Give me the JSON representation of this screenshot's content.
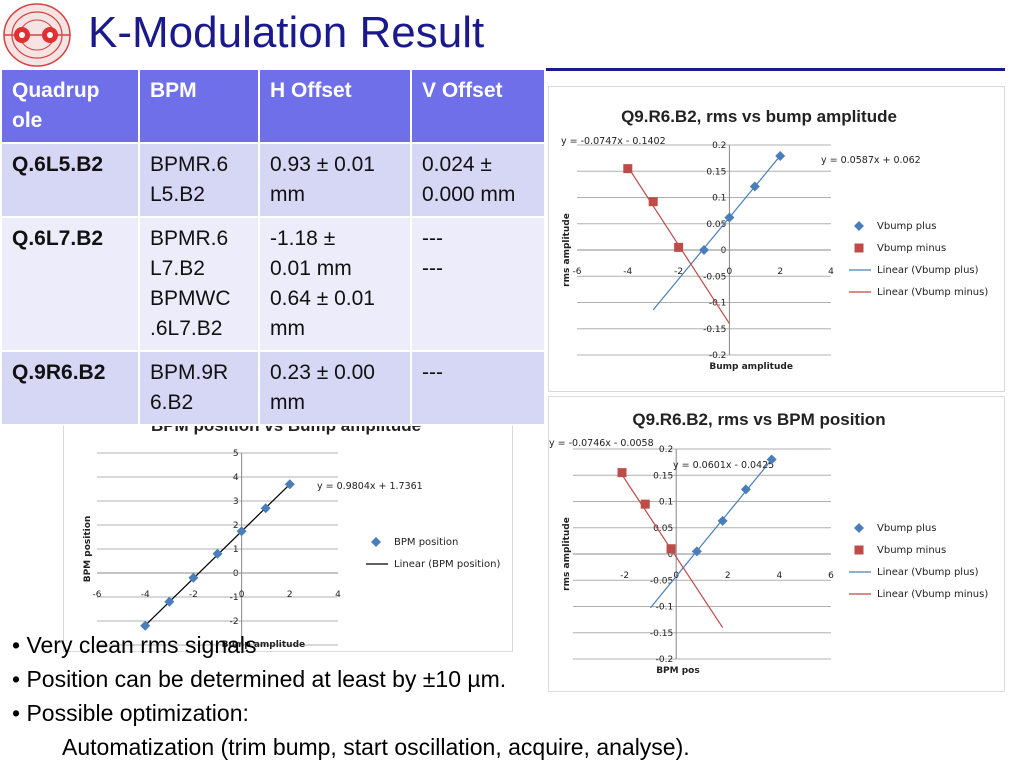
{
  "title": "K-Modulation Result",
  "table": {
    "headers": [
      "Quadrupole",
      "BPM",
      "H Offset",
      "V Offset"
    ],
    "header_display": [
      "Quadrup\nole",
      "BPM",
      "H Offset",
      "V Offset"
    ],
    "rows": [
      {
        "quad": "Q.6L5.B2",
        "bpm": [
          "BPMR.6",
          "L5.B2"
        ],
        "h": [
          "0.93 ± 0.01",
          "mm"
        ],
        "v": [
          "0.024 ±",
          "0.000 mm"
        ]
      },
      {
        "quad": "Q.6L7.B2",
        "bpm": [
          "BPMR.6",
          "L7.B2",
          "BPMWC",
          ".6L7.B2"
        ],
        "h": [
          "-1.18 ±",
          "0.01 mm",
          "0.64 ± 0.01",
          "mm"
        ],
        "v": [
          "---",
          "---"
        ]
      },
      {
        "quad": "Q.9R6.B2",
        "bpm": [
          "BPM.9R",
          "6.B2"
        ],
        "h": [
          "0.23 ± 0.00",
          "mm"
        ],
        "v": [
          "---"
        ]
      }
    ]
  },
  "bullets": [
    "• Very clean rms signals",
    "• Position can be determined at least by ±10 µm.",
    "• Possible optimization:"
  ],
  "sub_bullet": "Automatization (trim bump, start oscillation, acquire, analyse).",
  "chart_data": [
    {
      "type": "scatter",
      "title": "Q9.R6.B2, rms vs bump amplitude",
      "xlabel": "Bump amplitude",
      "ylabel": "rms amplitude",
      "xlim": [
        -6,
        4
      ],
      "ylim": [
        -0.2,
        0.2
      ],
      "xticks": [
        "-6",
        "-4",
        "-2",
        "0",
        "2",
        "4"
      ],
      "yticks": [
        "0.2",
        "0.15",
        "0.1",
        "0.05",
        "0",
        "-0.05",
        "-0.1",
        "-0.15",
        "-0.2"
      ],
      "series": [
        {
          "name": "Vbump plus",
          "color": "#4a7ebb",
          "marker": "diamond",
          "x": [
            -1,
            0,
            1,
            2
          ],
          "y": [
            0.0,
            0.062,
            0.121,
            0.179
          ]
        },
        {
          "name": "Vbump minus",
          "color": "#be4b48",
          "marker": "square",
          "x": [
            -4,
            -3,
            -2
          ],
          "y": [
            0.155,
            0.092,
            0.005
          ]
        }
      ],
      "trendlines": [
        {
          "name": "Linear (Vbump plus)",
          "color": "#4a7ebb",
          "equation": "y = 0.0587x + 0.062",
          "slope": 0.0587,
          "intercept": 0.062,
          "x": [
            -3,
            2
          ]
        },
        {
          "name": "Linear (Vbump minus)",
          "color": "#be4b48",
          "equation": "y = -0.0747x - 0.1402",
          "slope": -0.0747,
          "intercept": -0.1402,
          "x": [
            -4,
            0
          ]
        }
      ]
    },
    {
      "type": "scatter",
      "title": "BPM position vs Bump amplitude",
      "xlabel": "Bump amplitude",
      "ylabel": "BPM position",
      "xlim": [
        -6,
        4
      ],
      "ylim": [
        -3,
        5
      ],
      "xticks": [
        "-6",
        "-4",
        "-2",
        "0",
        "2",
        "4"
      ],
      "yticks": [
        "5",
        "4",
        "3",
        "2",
        "1",
        "0",
        "-1",
        "-2",
        "-3"
      ],
      "series": [
        {
          "name": "BPM position",
          "color": "#4a7ebb",
          "marker": "diamond",
          "x": [
            -4,
            -3,
            -2,
            -1,
            0,
            1,
            2
          ],
          "y": [
            -2.2,
            -1.2,
            -0.2,
            0.8,
            1.74,
            2.7,
            3.7
          ]
        }
      ],
      "trendlines": [
        {
          "name": "Linear (BPM position)",
          "color": "#000000",
          "equation": "y = 0.9804x + 1.7361",
          "slope": 0.9804,
          "intercept": 1.7361,
          "x": [
            -4,
            2
          ]
        }
      ]
    },
    {
      "type": "scatter",
      "title": "Q9.R6.B2, rms vs BPM position",
      "xlabel": "BPM pos",
      "ylabel": "rms amplitude",
      "xlim": [
        -4,
        6
      ],
      "ylim": [
        -0.2,
        0.2
      ],
      "xticks": [
        "-2",
        "0",
        "2",
        "4",
        "6"
      ],
      "yticks": [
        "0.2",
        "0.15",
        "0.1",
        "0.05",
        "0",
        "-0.05",
        "-0.1",
        "-0.15",
        "-0.2"
      ],
      "series": [
        {
          "name": "Vbump plus",
          "color": "#4a7ebb",
          "marker": "diamond",
          "x": [
            0.8,
            1.8,
            2.7,
            3.7
          ],
          "y": [
            0.005,
            0.063,
            0.123,
            0.18
          ]
        },
        {
          "name": "Vbump minus",
          "color": "#be4b48",
          "marker": "square",
          "x": [
            -2.1,
            -1.2,
            -0.2
          ],
          "y": [
            0.155,
            0.095,
            0.01
          ]
        }
      ],
      "trendlines": [
        {
          "name": "Linear (Vbump plus)",
          "color": "#4a7ebb",
          "equation": "y = 0.0601x - 0.0425",
          "slope": 0.0601,
          "intercept": -0.0425,
          "x": [
            -1,
            3.7
          ]
        },
        {
          "name": "Linear (Vbump minus)",
          "color": "#be4b48",
          "equation": "y = -0.0746x - 0.0058",
          "slope": -0.0746,
          "intercept": -0.0058,
          "x": [
            -2.1,
            1.8
          ]
        }
      ]
    }
  ]
}
